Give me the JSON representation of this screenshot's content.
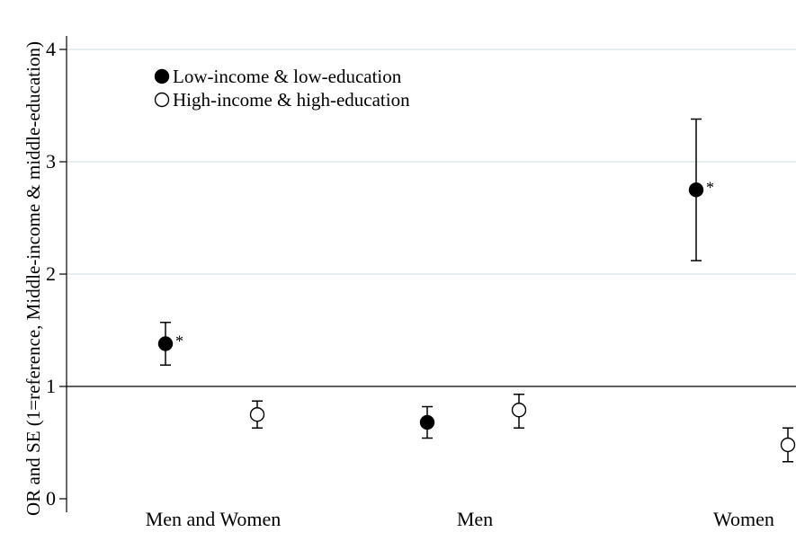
{
  "chart_data": {
    "type": "scatter",
    "title": "",
    "xlabel": "",
    "ylabel": "OR and SE (1=reference, Middle-income & middle-education)",
    "ylim": [
      0,
      4
    ],
    "yticks": [
      0,
      1,
      2,
      3,
      4
    ],
    "reference_line": 1,
    "categories": [
      "Men and Women",
      "Men",
      "Women"
    ],
    "legend_position": "top-left",
    "series": [
      {
        "name": "Low-income & low-education",
        "marker": "filled-circle",
        "points": [
          {
            "category": "Men and Women",
            "value": 1.38,
            "lower": 1.19,
            "upper": 1.57,
            "significance": "*"
          },
          {
            "category": "Men",
            "value": 0.68,
            "lower": 0.54,
            "upper": 0.82,
            "significance": ""
          },
          {
            "category": "Women",
            "value": 2.75,
            "lower": 2.12,
            "upper": 3.38,
            "significance": "*"
          }
        ]
      },
      {
        "name": "High-income & high-education",
        "marker": "open-circle",
        "points": [
          {
            "category": "Men and Women",
            "value": 0.75,
            "lower": 0.63,
            "upper": 0.87,
            "significance": ""
          },
          {
            "category": "Men",
            "value": 0.79,
            "lower": 0.63,
            "upper": 0.93,
            "significance": ""
          },
          {
            "category": "Women",
            "value": 0.48,
            "lower": 0.33,
            "upper": 0.63,
            "significance": ","
          }
        ]
      }
    ],
    "colors": {
      "axis": "#000000",
      "grid": "#dce9ea",
      "marker": "#000000",
      "background": "#ffffff"
    }
  }
}
